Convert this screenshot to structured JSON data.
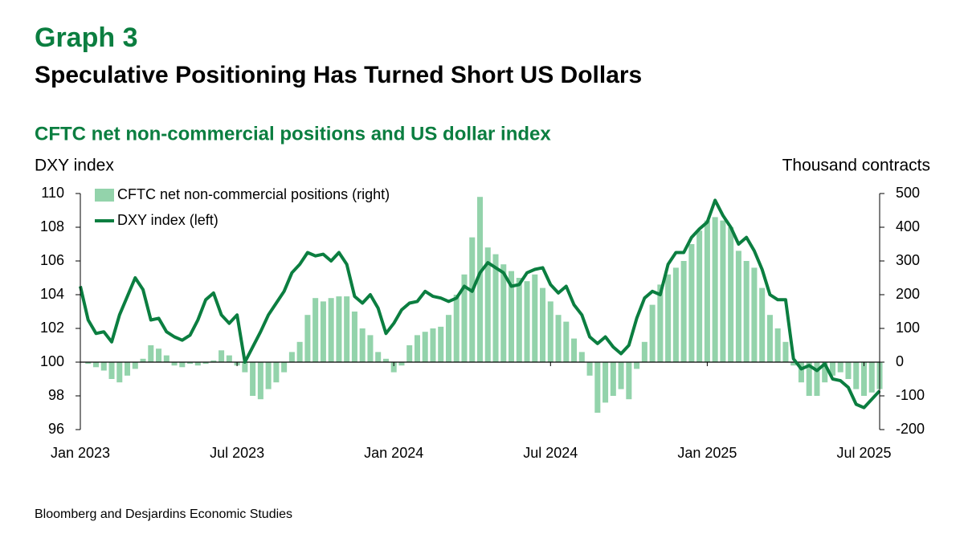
{
  "chart_data": {
    "type": "combo",
    "title": "Graph 3",
    "subtitle": "Speculative Positioning Has Turned Short US Dollars",
    "chart_title": "CFTC net non-commercial positions and US dollar index",
    "ylabel": "DXY index",
    "y2label": "Thousand contracts",
    "source": "Bloomberg and Desjardins Economic Studies",
    "legend": "upper left",
    "xlim": [
      2023.0,
      2025.55
    ],
    "xticks": [
      {
        "value": 2023.0,
        "label": "Jan 2023"
      },
      {
        "value": 2023.5,
        "label": "Jul 2023"
      },
      {
        "value": 2024.0,
        "label": "Jan 2024"
      },
      {
        "value": 2024.5,
        "label": "Jul 2024"
      },
      {
        "value": 2025.0,
        "label": "Jan 2025"
      },
      {
        "value": 2025.5,
        "label": "Jul 2025"
      }
    ],
    "ylim": [
      96,
      110
    ],
    "yticks": [
      96,
      98,
      100,
      102,
      104,
      106,
      108,
      110
    ],
    "y2lim": [
      -200,
      500
    ],
    "y2ticks": [
      -200,
      -100,
      0,
      100,
      200,
      300,
      400,
      500
    ],
    "x": [
      2023.0,
      2023.025,
      2023.05,
      2023.075,
      2023.1,
      2023.125,
      2023.15,
      2023.175,
      2023.2,
      2023.225,
      2023.25,
      2023.275,
      2023.3,
      2023.325,
      2023.35,
      2023.375,
      2023.4,
      2023.425,
      2023.45,
      2023.475,
      2023.5,
      2023.525,
      2023.55,
      2023.575,
      2023.6,
      2023.625,
      2023.65,
      2023.675,
      2023.7,
      2023.725,
      2023.75,
      2023.775,
      2023.8,
      2023.825,
      2023.85,
      2023.875,
      2023.9,
      2023.925,
      2023.95,
      2023.975,
      2024.0,
      2024.025,
      2024.05,
      2024.075,
      2024.1,
      2024.125,
      2024.15,
      2024.175,
      2024.2,
      2024.225,
      2024.25,
      2024.275,
      2024.3,
      2024.325,
      2024.35,
      2024.375,
      2024.4,
      2024.425,
      2024.45,
      2024.475,
      2024.5,
      2024.525,
      2024.55,
      2024.575,
      2024.6,
      2024.625,
      2024.65,
      2024.675,
      2024.7,
      2024.725,
      2024.75,
      2024.775,
      2024.8,
      2024.825,
      2024.85,
      2024.875,
      2024.9,
      2024.925,
      2024.95,
      2024.975,
      2025.0,
      2025.025,
      2025.05,
      2025.075,
      2025.1,
      2025.125,
      2025.15,
      2025.175,
      2025.2,
      2025.225,
      2025.25,
      2025.275,
      2025.3,
      2025.325,
      2025.35,
      2025.375,
      2025.4,
      2025.425,
      2025.45,
      2025.475,
      2025.5,
      2025.525,
      2025.55
    ],
    "series": [
      {
        "name": "CFTC net non-commercial positions (right)",
        "type": "bar",
        "axis": "y2",
        "color": "#93d3ab",
        "values": [
          0,
          -5,
          -15,
          -25,
          -50,
          -60,
          -40,
          -20,
          10,
          50,
          40,
          20,
          -10,
          -15,
          -5,
          -10,
          -5,
          5,
          35,
          20,
          -10,
          -30,
          -100,
          -110,
          -80,
          -60,
          -30,
          30,
          60,
          140,
          190,
          180,
          190,
          195,
          195,
          150,
          100,
          80,
          30,
          10,
          -30,
          -10,
          50,
          80,
          90,
          100,
          105,
          140,
          200,
          260,
          370,
          490,
          340,
          320,
          290,
          270,
          250,
          240,
          260,
          220,
          180,
          140,
          120,
          70,
          30,
          -40,
          -150,
          -120,
          -100,
          -80,
          -110,
          -20,
          60,
          170,
          230,
          260,
          280,
          300,
          350,
          390,
          420,
          430,
          420,
          400,
          330,
          300,
          280,
          220,
          140,
          100,
          60,
          -10,
          -60,
          -100,
          -100,
          -60,
          -40,
          -30,
          -50,
          -80,
          -100,
          -90,
          -80
        ]
      },
      {
        "name": "DXY index (left)",
        "type": "line",
        "axis": "y",
        "color": "#0b7e40",
        "values": [
          104.5,
          102.5,
          101.7,
          101.8,
          101.2,
          102.8,
          103.9,
          105.0,
          104.3,
          102.5,
          102.6,
          101.8,
          101.5,
          101.3,
          101.6,
          102.5,
          103.7,
          104.1,
          102.8,
          102.3,
          102.8,
          100.0,
          100.9,
          101.8,
          102.8,
          103.5,
          104.2,
          105.3,
          105.8,
          106.5,
          106.3,
          106.4,
          106.0,
          106.5,
          105.8,
          103.9,
          103.5,
          104.0,
          103.2,
          101.7,
          102.3,
          103.1,
          103.5,
          103.6,
          104.2,
          103.9,
          103.8,
          103.6,
          103.8,
          104.5,
          104.2,
          105.3,
          105.9,
          105.6,
          105.3,
          104.5,
          104.6,
          105.3,
          105.5,
          105.6,
          104.6,
          104.1,
          104.5,
          103.4,
          102.8,
          101.5,
          101.1,
          101.5,
          100.9,
          100.5,
          101.0,
          102.6,
          103.8,
          104.2,
          104.0,
          105.8,
          106.5,
          106.5,
          107.4,
          107.9,
          108.3,
          109.6,
          108.7,
          108.0,
          107.0,
          107.4,
          106.6,
          105.5,
          104.0,
          103.7,
          103.7,
          100.2,
          99.6,
          99.8,
          99.5,
          99.9,
          99.0,
          98.9,
          98.5,
          97.5,
          97.3,
          97.8,
          98.3
        ]
      }
    ]
  }
}
